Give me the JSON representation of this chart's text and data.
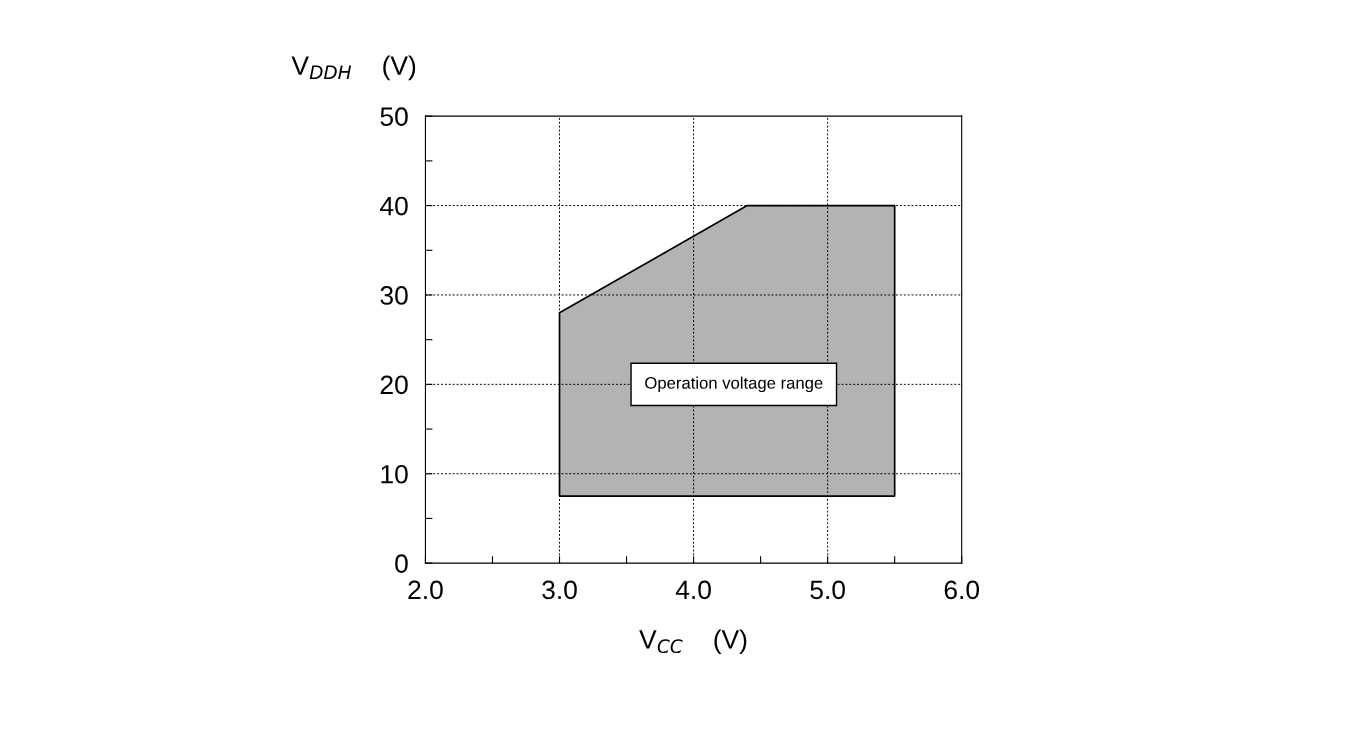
{
  "chart_data": {
    "type": "area",
    "xlabel": "V$_{CC}$    (V)",
    "ylabel": "V$_{DDH}$    (V)",
    "series": [
      {
        "x": [
          3.0,
          3.0,
          4.4,
          5.5,
          5.5
        ],
        "values": [
          7.5,
          28,
          40,
          40,
          7.5
        ],
        "color": "#b3b3b3"
      }
    ],
    "annotations": [
      "Operation voltage range"
    ],
    "xlim": [
      2.0,
      6.0
    ],
    "xticks": [
      {
        "value": 2,
        "label": "2.0"
      },
      {
        "value": 2.5,
        "label": null
      },
      {
        "value": 3,
        "label": "3.0"
      },
      {
        "value": 3.5,
        "label": null
      },
      {
        "value": 4,
        "label": "4.0"
      },
      {
        "value": 4.5,
        "label": null
      },
      {
        "value": 5,
        "label": "5.0"
      },
      {
        "value": 5.5,
        "label": null
      },
      {
        "value": 6,
        "label": "6.0"
      }
    ],
    "ylim": [
      0,
      50
    ],
    "yticks": [
      0,
      {
        "value": 5,
        "label": null
      },
      10,
      {
        "value": 15,
        "label": null
      },
      20,
      {
        "value": 25,
        "label": null
      },
      30,
      {
        "value": 35,
        "label": null
      },
      40,
      {
        "value": 45,
        "label": null
      },
      50
    ],
    "grid": true
  }
}
